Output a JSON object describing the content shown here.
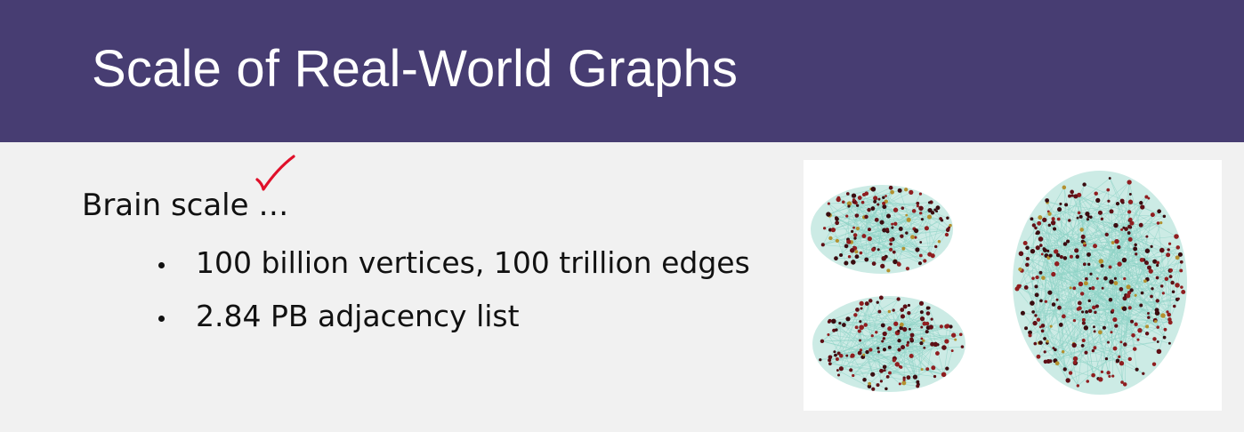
{
  "slide": {
    "title": "Scale of Real-World Graphs",
    "heading": "Brain scale …",
    "bullets": [
      "100 billion vertices, 100 trillion edges",
      "2.84 PB adjacency list"
    ]
  },
  "annotation": {
    "icon": "red-checkmark",
    "color": "#e0102a"
  },
  "figure": {
    "icon": "brain-network",
    "views": [
      "left-lateral-view",
      "right-lateral-view",
      "top-view"
    ],
    "node_colors": [
      "#5e0f15",
      "#8f1d1f",
      "#3a0c10",
      "#b3902f"
    ],
    "edge_color": "#8fd3c6"
  },
  "colors": {
    "title_bar": "#473d72",
    "title_text": "#ffffff",
    "background": "#f1f1f1",
    "body_text": "#111111"
  }
}
